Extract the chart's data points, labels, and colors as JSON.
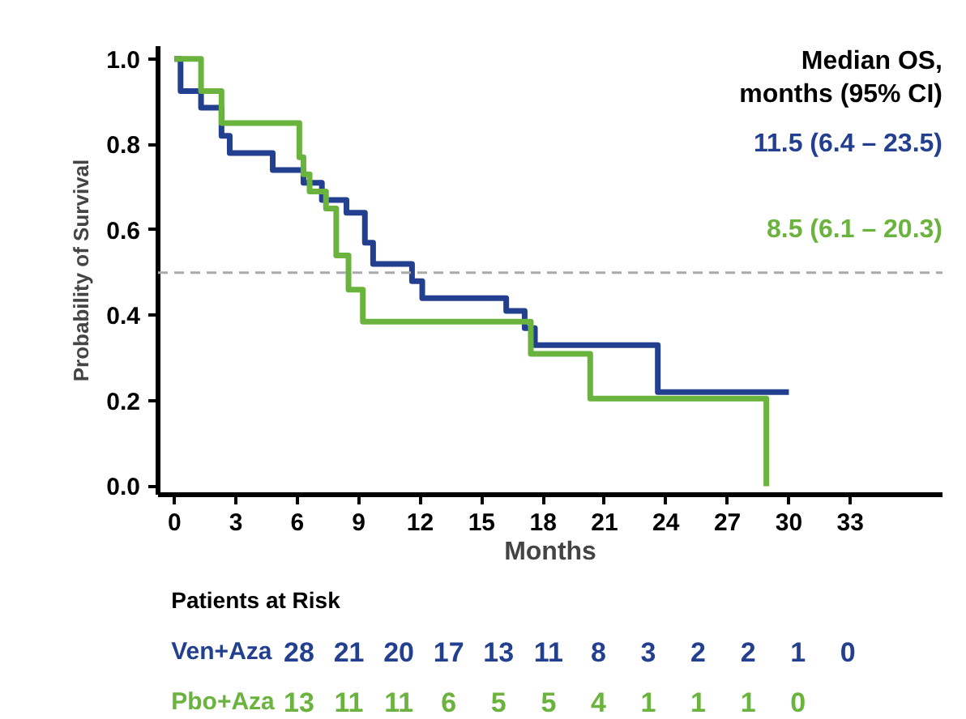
{
  "chart_data": {
    "type": "step",
    "xlabel": "Months",
    "ylabel": "Probability of Survival",
    "xlim": [
      -0.8,
      37.5
    ],
    "ylim": [
      -0.02,
      1.03
    ],
    "xticks": [
      0,
      3,
      6,
      9,
      12,
      15,
      18,
      21,
      24,
      27,
      30,
      33
    ],
    "yticks": [
      {
        "value": 0,
        "label": "0.0"
      },
      {
        "value": 0.2,
        "label": "0.2"
      },
      {
        "value": 0.4,
        "label": "0.4"
      },
      {
        "value": 0.6,
        "label": "0.6"
      },
      {
        "value": 0.8,
        "label": "0.8"
      },
      {
        "value": 1,
        "label": "1.0"
      }
    ],
    "grid": false,
    "marker": "none",
    "line_style": "solid",
    "series": [
      {
        "name": "Ven+Aza",
        "color": "#233f8f",
        "x": [
          0,
          0.3,
          1.3,
          2.3,
          2.7,
          4.8,
          6.3,
          7.2,
          8.4,
          9.3,
          9.7,
          11.6,
          12.1,
          16.2,
          17.1,
          17.6,
          23.6,
          30
        ],
        "values": [
          1.0,
          0.925,
          0.886,
          0.82,
          0.78,
          0.74,
          0.71,
          0.67,
          0.64,
          0.57,
          0.52,
          0.48,
          0.44,
          0.41,
          0.37,
          0.33,
          0.22,
          0.22
        ]
      },
      {
        "name": "Pbo+Aza",
        "color": "#6ab43e",
        "x": [
          0,
          1.3,
          2.3,
          6.1,
          6.3,
          6.6,
          7.4,
          7.9,
          8.5,
          9.2,
          17.4,
          20.3,
          28.9
        ],
        "values": [
          1.0,
          0.925,
          0.85,
          0.77,
          0.73,
          0.69,
          0.65,
          0.54,
          0.46,
          0.385,
          0.31,
          0.205,
          0.0
        ]
      }
    ],
    "ref_lines": [
      {
        "axis": "y",
        "value": 0.5,
        "color": "#aaaaaa",
        "line_style": "dashed"
      }
    ],
    "annotations": [
      "Median OS,\nmonths (95% CI)",
      "11.5 (6.4 – 23.5)",
      "8.5 (6.1 – 20.3)",
      "Patients at Risk",
      "28 21 20 17 13 11 8 3 2 2 1 0",
      "13 11 11 6 5 5 4 1 1 1 0"
    ]
  }
}
